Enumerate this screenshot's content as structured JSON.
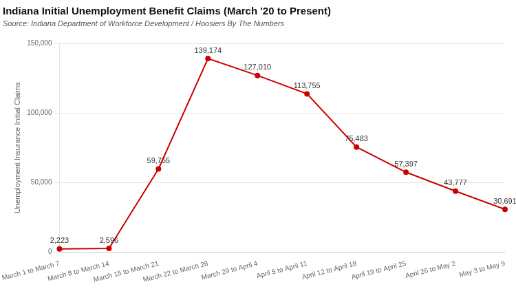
{
  "chart_data": {
    "type": "line",
    "title": "Indiana Initial Unemployment Benefit Claims (March '20 to Present)",
    "subtitle": "Source: Indiana Department of Workforce Development / Hoosiers By The Numbers",
    "ylabel": "Unemployment Insurance Initial Claims",
    "categories": [
      "March 1 to March 7",
      "March 8 to March 14",
      "March 15 to March 21",
      "March 22 to March 28",
      "March 29 to April 4",
      "April 5 to April 11",
      "April 12 to April 18",
      "April 19 to April 25",
      "April 26 to May 2",
      "May 3 to May 9"
    ],
    "values": [
      2223,
      2596,
      59755,
      139174,
      127010,
      113755,
      75483,
      57397,
      43777,
      30691
    ],
    "value_labels": [
      "2,223",
      "2,596",
      "59,755",
      "139,174",
      "127,010",
      "113,755",
      "75,483",
      "57,397",
      "43,777",
      "30,691"
    ],
    "color": "#cc0000",
    "marker": "circle",
    "data_labels": true,
    "ylim": [
      0,
      150000
    ],
    "yticks": [
      0,
      {
        "value": 50000,
        "label": "50,000"
      },
      {
        "value": 100000,
        "label": "100,000"
      },
      {
        "value": 150000,
        "label": "150,000"
      }
    ],
    "grid": true
  }
}
